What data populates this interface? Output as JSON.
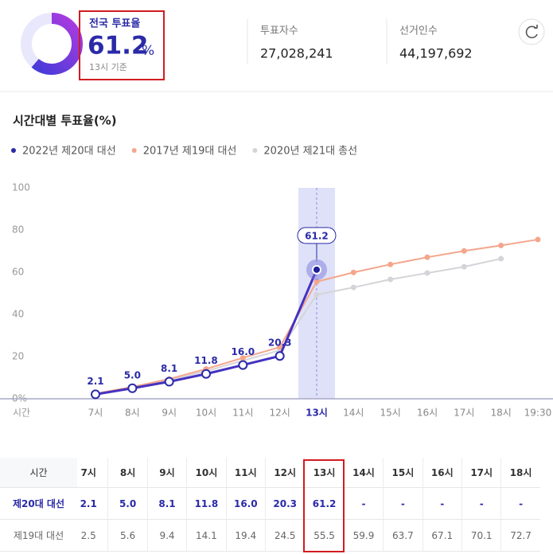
{
  "header": {
    "title": "전국 투표율",
    "rate": 61.2,
    "unit": "%",
    "basis": "13시 기준",
    "stats": [
      {
        "label": "투표자수",
        "value": "27,028,241"
      },
      {
        "label": "선거인수",
        "value": "44,197,692"
      }
    ]
  },
  "chart_data": {
    "type": "line",
    "title": "시간대별 투표율(%)",
    "x_label": "시간",
    "categories": [
      "7시",
      "8시",
      "9시",
      "10시",
      "11시",
      "12시",
      "13시",
      "14시",
      "15시",
      "16시",
      "17시",
      "18시",
      "19:30"
    ],
    "highlight": "13시",
    "series": [
      {
        "name": "2022년 제20대 대선",
        "color": "#4432c0",
        "values": [
          2.1,
          5.0,
          8.1,
          11.8,
          16.0,
          20.3,
          61.2,
          null,
          null,
          null,
          null,
          null,
          null
        ],
        "value_labels": [
          "2.1",
          "5.0",
          "8.1",
          "11.8",
          "16.0",
          "20.3",
          "61.2",
          null,
          null,
          null,
          null,
          null,
          null
        ]
      },
      {
        "name": "2017년 제19대 대선",
        "color": "#f4a68c",
        "values": [
          2.5,
          5.6,
          9.4,
          14.1,
          19.4,
          24.5,
          55.5,
          59.9,
          63.7,
          67.1,
          70.1,
          72.7,
          75.5
        ]
      },
      {
        "name": "2020년 제21대 총선",
        "color": "#d4d4d8",
        "values": [
          2.4,
          5.3,
          8.8,
          13.1,
          18.1,
          23.0,
          49.4,
          52.8,
          56.6,
          59.6,
          62.6,
          66.4,
          null
        ]
      }
    ],
    "ylim": [
      0,
      100
    ],
    "yticks": [
      {
        "value": 0,
        "label": "0%"
      },
      20,
      40,
      60,
      80,
      100
    ],
    "grid": false
  },
  "table": {
    "header": [
      "시간",
      "7시",
      "8시",
      "9시",
      "10시",
      "11시",
      "12시",
      "13시",
      "14시",
      "15시",
      "16시",
      "17시",
      "18시"
    ],
    "rows": [
      [
        "제20대 대선",
        "2.1",
        "5.0",
        "8.1",
        "11.8",
        "16.0",
        "20.3",
        "61.2",
        "-",
        "-",
        "-",
        "-",
        "-"
      ],
      [
        "제19대 대선",
        "2.5",
        "5.6",
        "9.4",
        "14.1",
        "19.4",
        "24.5",
        "55.5",
        "59.9",
        "63.7",
        "67.1",
        "70.1",
        "72.7"
      ]
    ]
  }
}
